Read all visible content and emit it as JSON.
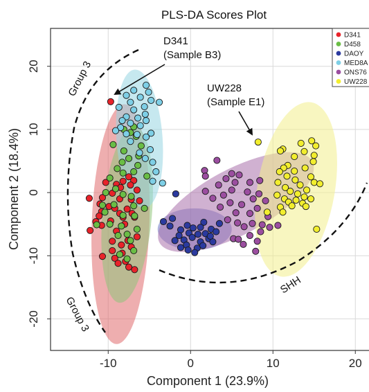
{
  "chart_data": {
    "type": "scatter",
    "title": "PLS-DA Scores Plot",
    "xlabel": "Component 1 (23.9%)",
    "ylabel": "Component 2 (18.4%)",
    "xlim": [
      -17,
      22.5
    ],
    "ylim": [
      -25,
      26
    ],
    "x_ticks": [
      -10,
      0,
      10,
      20
    ],
    "y_ticks": [
      20,
      10,
      0,
      -10,
      -20
    ],
    "x_tick_labels": [
      "-10",
      "0",
      "10",
      "20"
    ],
    "y_tick_labels": [
      "20",
      "10",
      "0",
      "-10",
      "-20"
    ],
    "grid": true,
    "legend_position": "top-right",
    "series": [
      {
        "name": "D341",
        "color": "#e8232a",
        "ellipse": {
          "cx": -8.5,
          "cy": -5,
          "rx": 3.5,
          "ry": 19,
          "angle_deg": 2,
          "fill": "#e06b6e"
        },
        "points": [
          [
            -9.7,
            14.4
          ],
          [
            -7.5,
            2.5
          ],
          [
            -8.2,
            1.8
          ],
          [
            -6.9,
            1.9
          ],
          [
            -10.3,
            1.6
          ],
          [
            -9,
            1.3
          ],
          [
            -7.3,
            1.2
          ],
          [
            -8.5,
            0.8
          ],
          [
            -6.5,
            0.4
          ],
          [
            -9.5,
            -0.1
          ],
          [
            -12.3,
            -0.9
          ],
          [
            -10.7,
            -0.8
          ],
          [
            -8.6,
            -1
          ],
          [
            -7.2,
            -1.1
          ],
          [
            -6.2,
            -1.3
          ],
          [
            -11,
            -1.8
          ],
          [
            -9.9,
            -2.2
          ],
          [
            -9.2,
            -2.5
          ],
          [
            -7.7,
            -2.6
          ],
          [
            -10.8,
            -3
          ],
          [
            -8.6,
            -3.3
          ],
          [
            -7.1,
            -3.3
          ],
          [
            -11.1,
            -3.7
          ],
          [
            -8.2,
            -3.9
          ],
          [
            -6.8,
            -3.9
          ],
          [
            -9.7,
            -4.5
          ],
          [
            -11.5,
            -4.6
          ],
          [
            -8,
            -5
          ],
          [
            -12.2,
            -6
          ],
          [
            -10.8,
            -5.2
          ],
          [
            -9,
            -6.1
          ],
          [
            -6.5,
            -7
          ],
          [
            -7.6,
            -7.6
          ],
          [
            -9.5,
            -7.7
          ],
          [
            -8.4,
            -8.3
          ],
          [
            -7.2,
            -8.6
          ],
          [
            -9.5,
            -9.2
          ],
          [
            -10.7,
            -10.1
          ],
          [
            -8.3,
            -9.6
          ],
          [
            -9.2,
            -10.4
          ],
          [
            -7.9,
            -10.9
          ],
          [
            -8.8,
            -11.2
          ],
          [
            -7.5,
            -11.8
          ],
          [
            -6.8,
            -12.2
          ]
        ]
      },
      {
        "name": "D458",
        "color": "#6abd45",
        "ellipse": {
          "cx": -7.7,
          "cy": -3.5,
          "rx": 3,
          "ry": 14,
          "angle_deg": 5,
          "fill": "#8fc47a"
        },
        "points": [
          [
            -6.9,
            10.4
          ],
          [
            -8.1,
            10
          ],
          [
            -7.3,
            9.5
          ],
          [
            -6.6,
            8.9
          ],
          [
            -9.4,
            7.6
          ],
          [
            -6,
            7.4
          ],
          [
            -8.1,
            6.6
          ],
          [
            -6.3,
            5.8
          ],
          [
            -7.5,
            5.4
          ],
          [
            -8.3,
            4.8
          ],
          [
            -6.4,
            4.3
          ],
          [
            -8.9,
            3.8
          ],
          [
            -6.9,
            3.3
          ],
          [
            -8.2,
            3.1
          ],
          [
            -5.3,
            2.6
          ],
          [
            -9.8,
            2.3
          ],
          [
            -9.1,
            0.6
          ],
          [
            -10.3,
            0
          ],
          [
            -8.2,
            -0.3
          ],
          [
            -7.2,
            -0.6
          ],
          [
            -10.7,
            -2
          ],
          [
            -9.3,
            -1.9
          ],
          [
            -6.9,
            -2.1
          ],
          [
            -5.6,
            -2.5
          ],
          [
            -10.4,
            -3.1
          ],
          [
            -8.2,
            -3.6
          ],
          [
            -6.8,
            -3.7
          ],
          [
            -11.4,
            -5.1
          ],
          [
            -9.8,
            -5
          ],
          [
            -8.4,
            -5.3
          ],
          [
            -6.5,
            -5.8
          ],
          [
            -7.7,
            -6.6
          ],
          [
            -8.8,
            -6.8
          ],
          [
            -7.3,
            -7.6
          ],
          [
            -6.9,
            -9.2
          ],
          [
            -8.6,
            -9.8
          ],
          [
            -7.7,
            -10.5
          ]
        ]
      },
      {
        "name": "DAOY",
        "color": "#2b3a9f",
        "ellipse": {
          "cx": 0.5,
          "cy": -5.8,
          "rx": 4.5,
          "ry": 3.3,
          "angle_deg": 0,
          "fill": "#6f78c4"
        },
        "points": [
          [
            -1.8,
            -0.2
          ],
          [
            -3.3,
            -4.6
          ],
          [
            -2.2,
            -4.1
          ],
          [
            1.6,
            -4.7
          ],
          [
            3.5,
            -4.9
          ],
          [
            -0.4,
            -5.2
          ],
          [
            0.3,
            -5.6
          ],
          [
            1.2,
            -5.5
          ],
          [
            -1.2,
            -5.9
          ],
          [
            2.5,
            -5.8
          ],
          [
            -0.2,
            -6.4
          ],
          [
            0.9,
            -6.6
          ],
          [
            -1.4,
            -6.8
          ],
          [
            1.8,
            -6.5
          ],
          [
            0.2,
            -7.1
          ],
          [
            2.2,
            -7.3
          ],
          [
            -0.8,
            -7.5
          ],
          [
            1.2,
            -7.8
          ],
          [
            -1.9,
            -7.6
          ],
          [
            2.7,
            -7.8
          ],
          [
            -0.5,
            -8.3
          ],
          [
            0.8,
            -8.8
          ],
          [
            1.5,
            -8.4
          ],
          [
            -0.3,
            -9.1
          ],
          [
            0.5,
            -9.5
          ],
          [
            -1.2,
            -8.7
          ],
          [
            2.4,
            -6.9
          ],
          [
            3.1,
            -6.2
          ],
          [
            -2.5,
            -5.3
          ]
        ]
      },
      {
        "name": "MED8A",
        "color": "#7ecfe6",
        "ellipse": {
          "cx": -6.2,
          "cy": 8.5,
          "rx": 2.8,
          "ry": 11,
          "angle_deg": -4,
          "fill": "#98d5e2"
        },
        "points": [
          [
            -5.4,
            17
          ],
          [
            -5.1,
            15.9
          ],
          [
            -6.9,
            16.2
          ],
          [
            -7.8,
            15.4
          ],
          [
            -6.1,
            15.1
          ],
          [
            -4.8,
            14.6
          ],
          [
            -7.3,
            14.3
          ],
          [
            -5.6,
            13.6
          ],
          [
            -8.7,
            13.5
          ],
          [
            -3.8,
            14.3
          ],
          [
            -6.9,
            13.1
          ],
          [
            -5.5,
            12.4
          ],
          [
            -7.8,
            12
          ],
          [
            -6.4,
            11.8
          ],
          [
            -8.3,
            11.4
          ],
          [
            -5.4,
            11.4
          ],
          [
            -7.3,
            11
          ],
          [
            -6.1,
            10.6
          ],
          [
            -8.5,
            10.3
          ],
          [
            -9.1,
            9.8
          ],
          [
            -7.8,
            9.3
          ],
          [
            -4.8,
            9.4
          ],
          [
            -6.5,
            9.2
          ],
          [
            -5.4,
            8.8
          ],
          [
            -7.3,
            8.1
          ],
          [
            -4.9,
            6.8
          ],
          [
            -6.2,
            6.3
          ],
          [
            -5.5,
            5.4
          ],
          [
            -4.6,
            4.8
          ],
          [
            -4.2,
            3.3
          ],
          [
            -3.4,
            1.5
          ],
          [
            -4.6,
            1.8
          ]
        ]
      },
      {
        "name": "ONS76",
        "color": "#9b4ea0",
        "ellipse": {
          "cx": 5.5,
          "cy": -1.5,
          "rx": 10.5,
          "ry": 5.2,
          "angle_deg": -28,
          "fill": "#a971ab"
        },
        "points": [
          [
            3.2,
            5.1
          ],
          [
            1.7,
            3.5
          ],
          [
            5,
            3
          ],
          [
            1.8,
            2.6
          ],
          [
            4.3,
            2.2
          ],
          [
            5.9,
            2.8
          ],
          [
            7.2,
            1.6
          ],
          [
            5.4,
            1.6
          ],
          [
            8.4,
            1.9
          ],
          [
            3.4,
            1.2
          ],
          [
            1.8,
            0.2
          ],
          [
            5,
            0.4
          ],
          [
            6.9,
            0.1
          ],
          [
            4,
            -0.4
          ],
          [
            8.3,
            -0.2
          ],
          [
            7.6,
            -1
          ],
          [
            2.7,
            -0.9
          ],
          [
            4.8,
            -1.6
          ],
          [
            6.2,
            -1.9
          ],
          [
            9.1,
            -1.3
          ],
          [
            3.6,
            -2.3
          ],
          [
            5.5,
            -3.2
          ],
          [
            7.2,
            -3.3
          ],
          [
            8.1,
            -2.5
          ],
          [
            9.4,
            -3.8
          ],
          [
            5.7,
            -4.8
          ],
          [
            7.5,
            -4.9
          ],
          [
            8.7,
            -5.1
          ],
          [
            6.5,
            -5.4
          ],
          [
            10.6,
            -5.2
          ],
          [
            4.5,
            -4.3
          ],
          [
            5.2,
            -7.3
          ],
          [
            5.8,
            -7.4
          ],
          [
            7.2,
            -6.8
          ],
          [
            8.1,
            -7.7
          ],
          [
            7.9,
            -9.3
          ],
          [
            6.4,
            -8.2
          ],
          [
            8.5,
            -6.2
          ],
          [
            9.6,
            -5.5
          ]
        ]
      },
      {
        "name": "UW228",
        "color": "#f2ee2e",
        "ellipse": {
          "cx": 12.8,
          "cy": 0.5,
          "rx": 4.7,
          "ry": 14,
          "angle_deg": 10,
          "fill": "#f3ef8c"
        },
        "points": [
          [
            8.2,
            8
          ],
          [
            14.7,
            8.2
          ],
          [
            13.4,
            7.8
          ],
          [
            15.2,
            7.4
          ],
          [
            11.2,
            6.9
          ],
          [
            10.9,
            6.6
          ],
          [
            13.8,
            6.5
          ],
          [
            15,
            5.9
          ],
          [
            12.6,
            5.7
          ],
          [
            14.9,
            4.9
          ],
          [
            11.8,
            4.3
          ],
          [
            11.3,
            3.9
          ],
          [
            13.9,
            3.9
          ],
          [
            12.6,
            3.4
          ],
          [
            10.8,
            3.3
          ],
          [
            11.7,
            2.6
          ],
          [
            14.6,
            2.5
          ],
          [
            12.7,
            2
          ],
          [
            10.6,
            1.6
          ],
          [
            15,
            1.6
          ],
          [
            13.3,
            1.2
          ],
          [
            11.5,
            0.8
          ],
          [
            15.7,
            1.4
          ],
          [
            14.1,
            0.4
          ],
          [
            12.1,
            0.2
          ],
          [
            13,
            -0.2
          ],
          [
            10.5,
            -0.4
          ],
          [
            13.8,
            -0.7
          ],
          [
            12.8,
            -1.2
          ],
          [
            11.4,
            -1
          ],
          [
            14.6,
            -1
          ],
          [
            11.9,
            -1.5
          ],
          [
            13.6,
            -1.7
          ],
          [
            10.9,
            -2.3
          ],
          [
            12.3,
            -2.1
          ],
          [
            14,
            -2.2
          ],
          [
            15.3,
            -5.8
          ],
          [
            9.3,
            -3.1
          ],
          [
            11.2,
            -3.1
          ]
        ]
      }
    ],
    "annotations": [
      {
        "lines": [
          "D341",
          "(Sample B3)"
        ],
        "x": -3,
        "y": 24
      },
      {
        "lines": [
          "UW228",
          "(Sample E1)"
        ],
        "x": 2.5,
        "y": 16.5
      }
    ],
    "group_labels": [
      "Group 3",
      "Group 3",
      "SHH"
    ]
  }
}
